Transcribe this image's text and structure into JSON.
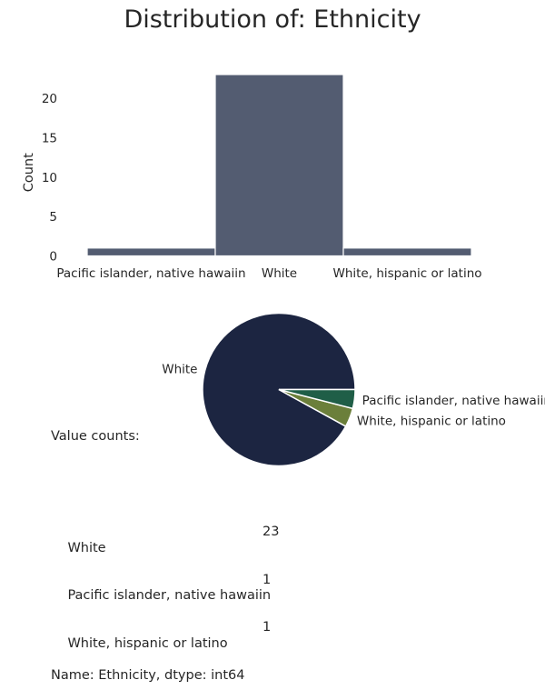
{
  "chart_data": [
    {
      "type": "bar",
      "title": "Distribution of: Ethnicity",
      "xlabel": "",
      "ylabel": "Count",
      "categories": [
        "Pacific islander, native hawaiin",
        "White",
        "White, hispanic or latino"
      ],
      "values": [
        1,
        23,
        1
      ],
      "ylim": [
        0,
        23
      ],
      "yticks": [
        0,
        5,
        10,
        15,
        20
      ],
      "bar_color": "#535c71",
      "grid": false
    },
    {
      "type": "pie",
      "labels": [
        "White",
        "White, hispanic or latino",
        "Pacific islander, native hawaiin"
      ],
      "values": [
        23,
        1,
        1
      ],
      "colors": [
        "#1c2541",
        "#6b7f3a",
        "#1f5e47"
      ],
      "legend": "none"
    }
  ],
  "value_counts": {
    "header": "Value counts:",
    "rows": [
      {
        "label": "White",
        "count": "23"
      },
      {
        "label": "Pacific islander, native hawaiin",
        "count": "1"
      },
      {
        "label": "White, hispanic or latino",
        "count": "1"
      }
    ],
    "footer": "Name: Ethnicity, dtype: int64"
  }
}
